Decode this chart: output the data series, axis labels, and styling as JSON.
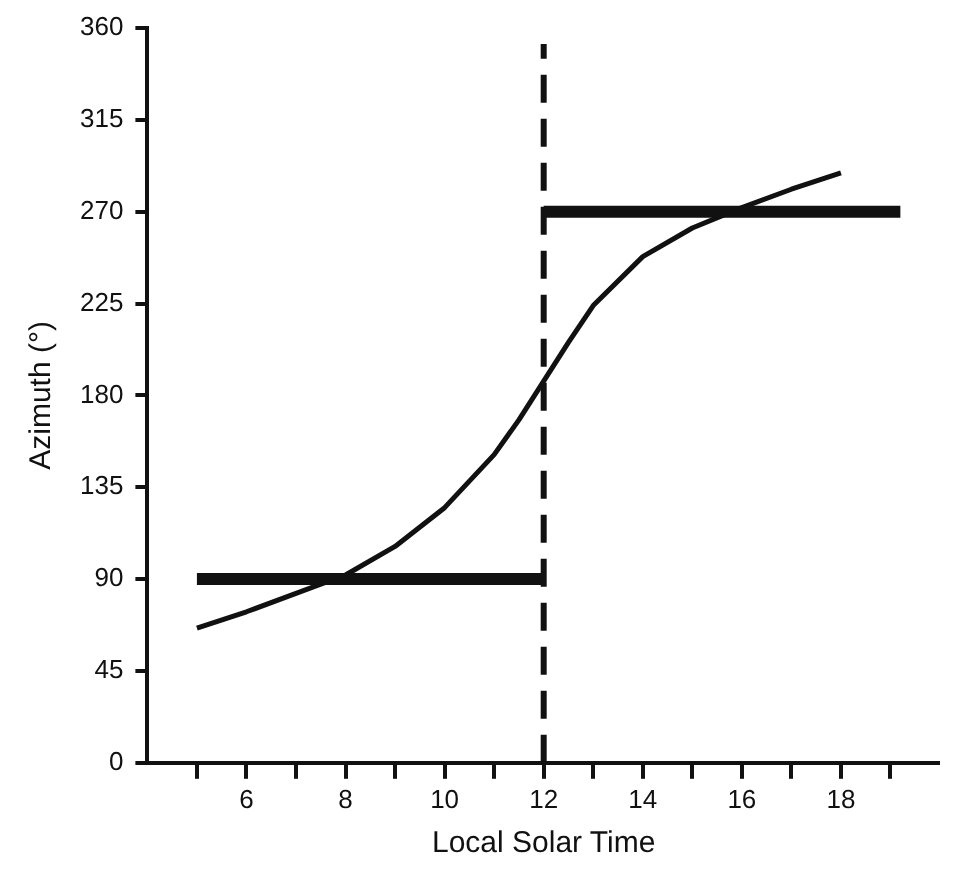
{
  "chart_data": {
    "type": "line",
    "xlabel": "Local Solar Time",
    "ylabel": "Azimuth (°)",
    "xlim": [
      4,
      20
    ],
    "ylim": [
      0,
      360
    ],
    "xticks": [
      {
        "value": 5,
        "label": null
      },
      6,
      {
        "value": 7,
        "label": null
      },
      8,
      {
        "value": 9,
        "label": null
      },
      10,
      {
        "value": 11,
        "label": null
      },
      12,
      {
        "value": 13,
        "label": null
      },
      14,
      {
        "value": 15,
        "label": null
      },
      16,
      {
        "value": 17,
        "label": null
      },
      18,
      {
        "value": 19,
        "label": null
      }
    ],
    "yticks": [
      0,
      45,
      90,
      135,
      180,
      225,
      270,
      315,
      360
    ],
    "grid": false,
    "legend": false,
    "marker": "none",
    "line_style": "solid",
    "series": [
      {
        "color": "#111111",
        "x": [
          5,
          6,
          7,
          8,
          9,
          10,
          11,
          11.5,
          12,
          12.5,
          13,
          14,
          15,
          16,
          17,
          18
        ],
        "values": [
          66,
          74,
          83,
          92,
          106,
          125,
          151,
          168,
          187,
          206,
          224,
          248,
          262,
          272,
          281,
          289
        ]
      },
      {
        "color": "#111111",
        "x": [
          5,
          12
        ],
        "values": [
          90,
          90
        ]
      },
      {
        "color": "#111111",
        "x": [
          12,
          19.2
        ],
        "values": [
          270,
          270
        ]
      }
    ],
    "ref_lines": [
      {
        "axis": "x",
        "value": 12,
        "line_style": "dashed",
        "color": "#111111"
      }
    ]
  }
}
